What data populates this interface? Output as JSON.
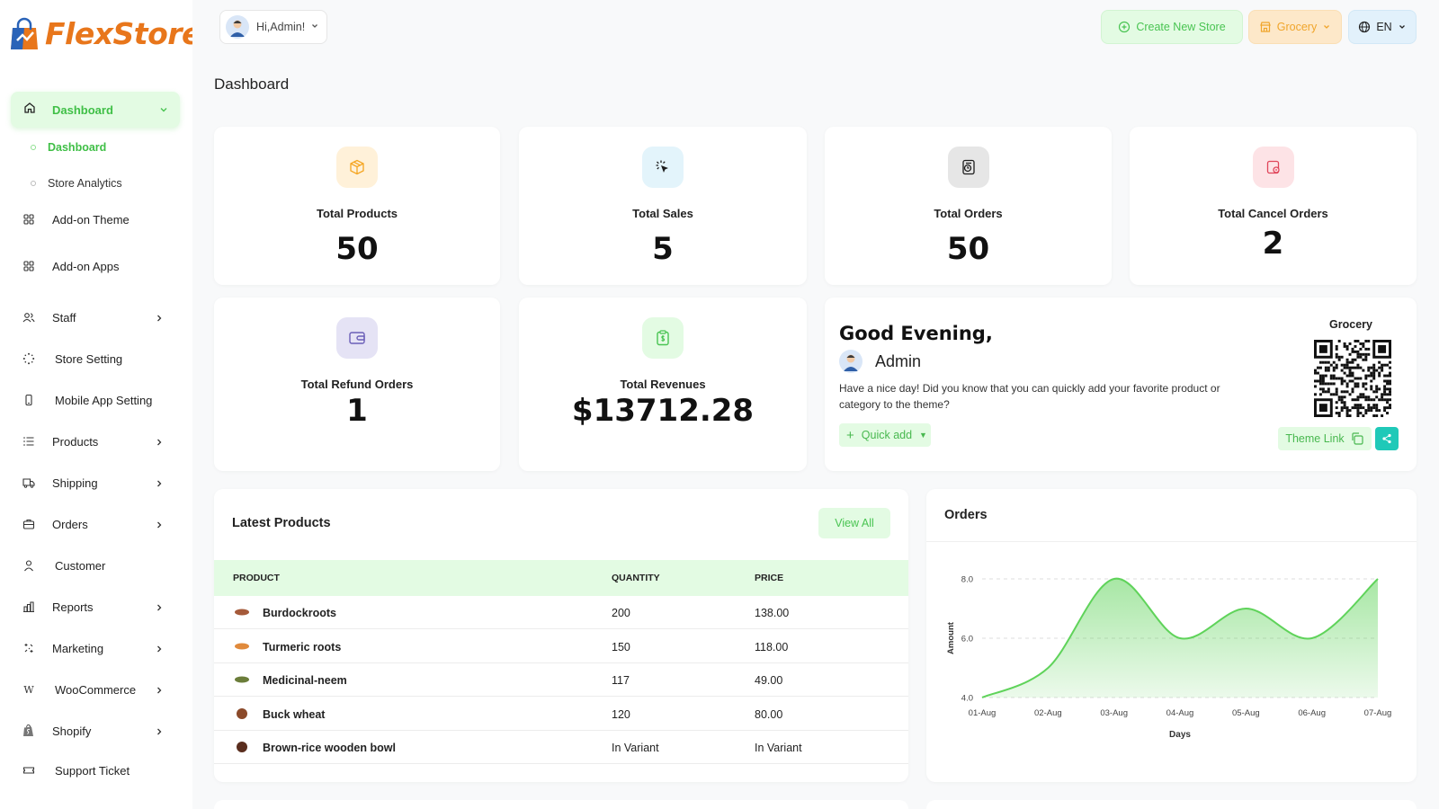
{
  "brand": {
    "name": "FlexStore",
    "color": "#e8761b"
  },
  "sidebar": {
    "active_section": {
      "label": "Dashboard",
      "icon": "home-icon"
    },
    "sub_items": [
      {
        "label": "Dashboard",
        "active": true
      },
      {
        "label": "Store Analytics",
        "active": false
      }
    ],
    "items": [
      {
        "label": "Add-on Theme",
        "icon": "grid-icon",
        "has_children": false
      },
      {
        "label": "Add-on Apps",
        "icon": "grid-icon",
        "has_children": false
      },
      {
        "label": "Staff",
        "icon": "users-icon",
        "has_children": true
      },
      {
        "label": "Store Setting",
        "icon": "loader-icon",
        "has_children": false
      },
      {
        "label": "Mobile App Setting",
        "icon": "mobile-icon",
        "has_children": false
      },
      {
        "label": "Products",
        "icon": "list-icon",
        "has_children": true
      },
      {
        "label": "Shipping",
        "icon": "truck-icon",
        "has_children": true
      },
      {
        "label": "Orders",
        "icon": "briefcase-icon",
        "has_children": true
      },
      {
        "label": "Customer",
        "icon": "user-icon",
        "has_children": false
      },
      {
        "label": "Reports",
        "icon": "bar-chart-icon",
        "has_children": true
      },
      {
        "label": "Marketing",
        "icon": "sparkle-icon",
        "has_children": true
      },
      {
        "label": "WooCommerce",
        "icon": "woocommerce-icon",
        "has_children": true
      },
      {
        "label": "Shopify",
        "icon": "shopify-icon",
        "has_children": true
      },
      {
        "label": "Support Ticket",
        "icon": "ticket-icon",
        "has_children": false
      }
    ]
  },
  "header": {
    "greeting_user": "Hi,Admin!",
    "create_store_label": "Create New Store",
    "store_select": "Grocery",
    "language": "EN"
  },
  "page_title": "Dashboard",
  "stats": [
    {
      "label": "Total Products",
      "value": "50",
      "icon": "box-icon",
      "bg": "#fff1d9",
      "fg": "#f5a623"
    },
    {
      "label": "Total Sales",
      "value": "5",
      "icon": "cursor-click-icon",
      "bg": "#e3f4fb",
      "fg": "#1c1c1c"
    },
    {
      "label": "Total Orders",
      "value": "50",
      "icon": "orders-icon",
      "bg": "#e6e6e6",
      "fg": "#1c1c1c"
    },
    {
      "label": "Total Cancel Orders",
      "value": "2",
      "icon": "cancel-order-icon",
      "bg": "#fde3e6",
      "fg": "#e0455a"
    },
    {
      "label": "Total Refund Orders",
      "value": "1",
      "icon": "wallet-icon",
      "bg": "#e5e3f5",
      "fg": "#6b5fb8"
    },
    {
      "label": "Total Revenues",
      "value": "$13712.28",
      "icon": "clipboard-dollar-icon",
      "bg": "#e3fbe3",
      "fg": "#49c452"
    }
  ],
  "greeting": {
    "title": "Good Evening,",
    "user": "Admin",
    "message": "Have a nice day! Did you know that you can quickly add your favorite product or category to the theme?",
    "quick_add_label": "Quick add",
    "store_name": "Grocery",
    "theme_link_label": "Theme Link"
  },
  "latest_products": {
    "title": "Latest Products",
    "view_all_label": "View All",
    "columns": [
      "PRODUCT",
      "QUANTITY",
      "PRICE"
    ],
    "rows": [
      {
        "product": "Burdockroots",
        "quantity": "200",
        "price": "138.00",
        "thumb": "#a55a3a"
      },
      {
        "product": "Turmeric roots",
        "quantity": "150",
        "price": "118.00",
        "thumb": "#e08a3c"
      },
      {
        "product": "Medicinal-neem",
        "quantity": "117",
        "price": "49.00",
        "thumb": "#6b7d3a"
      },
      {
        "product": "Buck wheat",
        "quantity": "120",
        "price": "80.00",
        "thumb": "#8b4a2a"
      },
      {
        "product": "Brown-rice wooden bowl",
        "quantity": "In Variant",
        "price": "In Variant",
        "thumb": "#5a2e1e"
      }
    ]
  },
  "chart_data": {
    "type": "area",
    "title": "Orders",
    "x": [
      "01-Aug",
      "02-Aug",
      "03-Aug",
      "04-Aug",
      "05-Aug",
      "06-Aug",
      "07-Aug"
    ],
    "series": [
      {
        "values": [
          4.0,
          5.0,
          8.0,
          6.0,
          7.0,
          6.0,
          8.0
        ]
      }
    ],
    "yticks": [
      "4.0",
      "6.0",
      "8.0"
    ],
    "ylim": [
      4,
      8
    ],
    "xlabel": "Days",
    "ylabel": "Amount",
    "color": "#5fd35a",
    "grid": true
  }
}
